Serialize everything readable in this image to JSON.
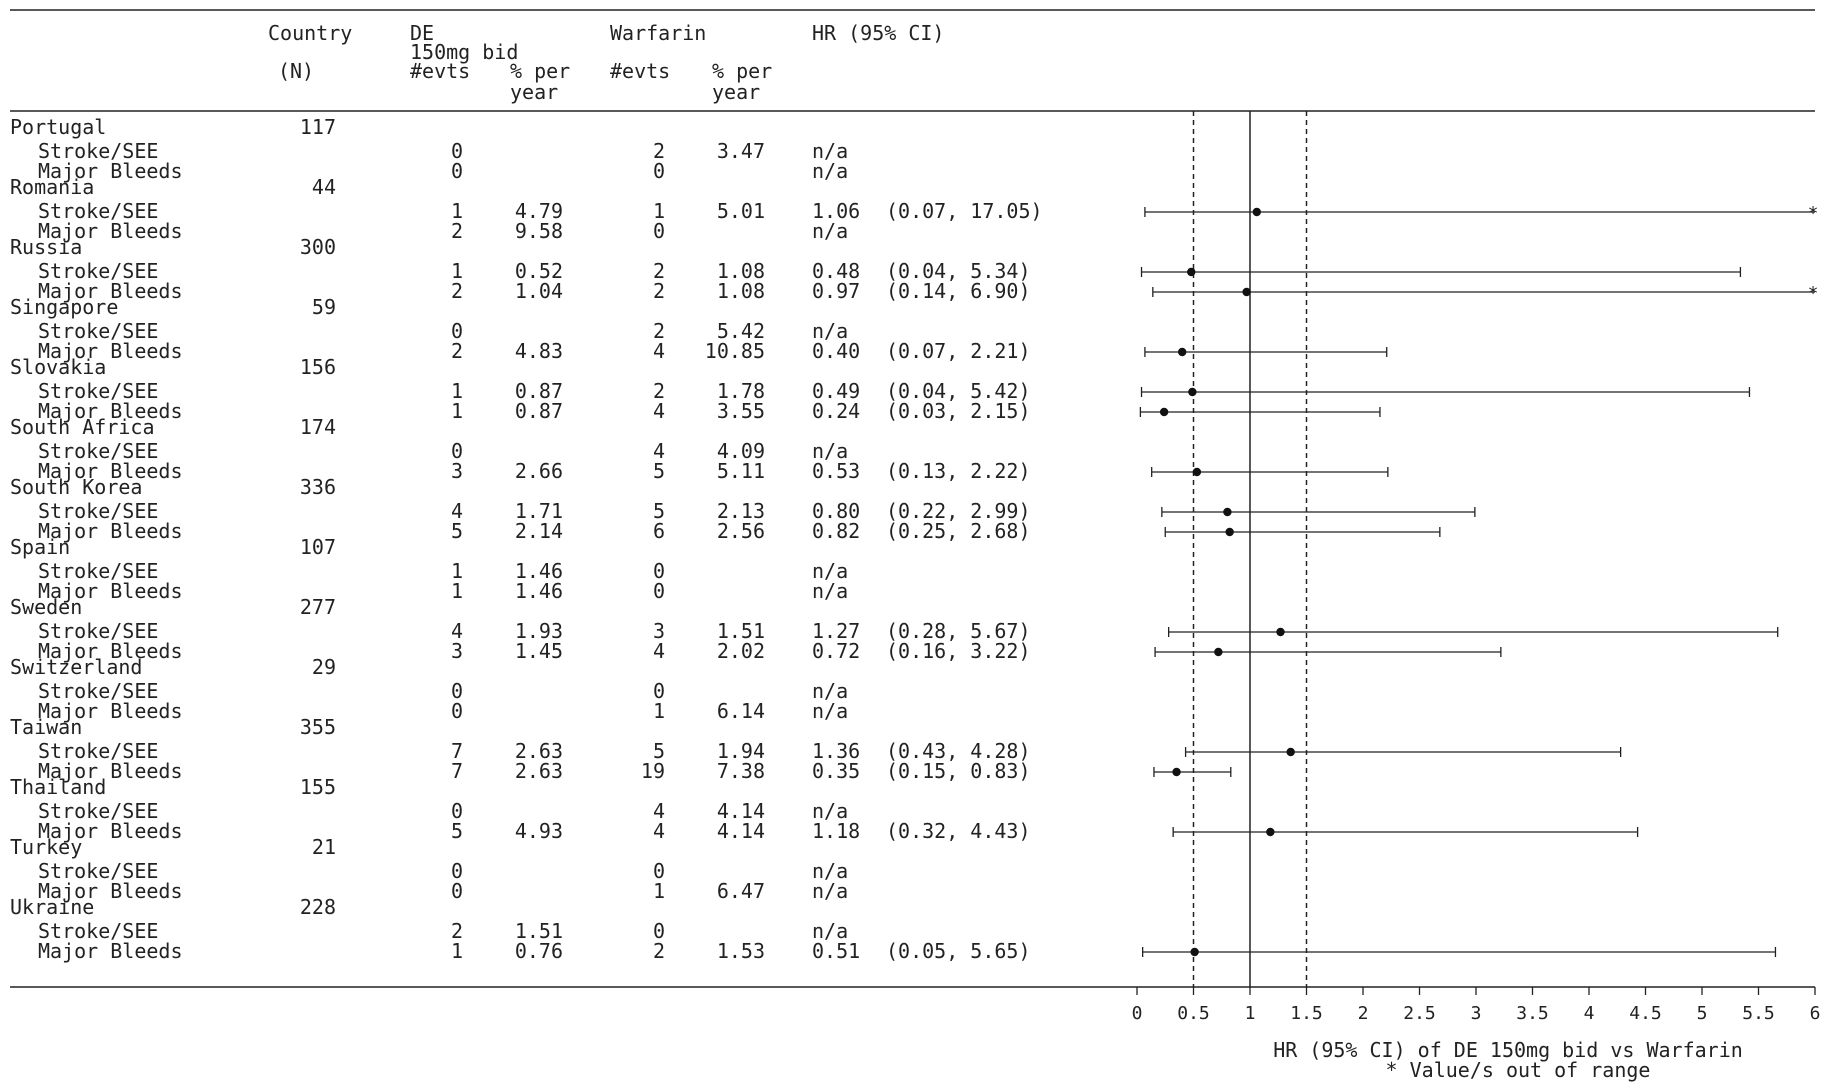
{
  "headers": {
    "country": "Country",
    "n": "(N)",
    "de_group": "DE",
    "de_group2": "150mg bid",
    "warfarin_group": "Warfarin",
    "hr": "HR (95% CI)",
    "evts": "#evts",
    "pct1": "% per",
    "pct2": "year"
  },
  "rows": [
    {
      "label": "Portugal",
      "n": "117",
      "heading": true
    },
    {
      "label": "Stroke/SEE",
      "de_evts": "0",
      "de_pct": "",
      "w_evts": "2",
      "w_pct": "3.47",
      "hr_text": "n/a",
      "ci_text": ""
    },
    {
      "label": "Major Bleeds",
      "de_evts": "0",
      "de_pct": "",
      "w_evts": "0",
      "w_pct": "",
      "hr_text": "n/a",
      "ci_text": ""
    },
    {
      "label": "Romania",
      "n": "44",
      "heading": true
    },
    {
      "label": "Stroke/SEE",
      "de_evts": "1",
      "de_pct": "4.79",
      "w_evts": "1",
      "w_pct": "5.01",
      "hr_text": "1.06",
      "ci_text": "(0.07, 17.05)"
    },
    {
      "label": "Major Bleeds",
      "de_evts": "2",
      "de_pct": "9.58",
      "w_evts": "0",
      "w_pct": "",
      "hr_text": "n/a",
      "ci_text": ""
    },
    {
      "label": "Russia",
      "n": "300",
      "heading": true
    },
    {
      "label": "Stroke/SEE",
      "de_evts": "1",
      "de_pct": "0.52",
      "w_evts": "2",
      "w_pct": "1.08",
      "hr_text": "0.48",
      "ci_text": "(0.04, 5.34)"
    },
    {
      "label": "Major Bleeds",
      "de_evts": "2",
      "de_pct": "1.04",
      "w_evts": "2",
      "w_pct": "1.08",
      "hr_text": "0.97",
      "ci_text": "(0.14, 6.90)"
    },
    {
      "label": "Singapore",
      "n": "59",
      "heading": true
    },
    {
      "label": "Stroke/SEE",
      "de_evts": "0",
      "de_pct": "",
      "w_evts": "2",
      "w_pct": "5.42",
      "hr_text": "n/a",
      "ci_text": ""
    },
    {
      "label": "Major Bleeds",
      "de_evts": "2",
      "de_pct": "4.83",
      "w_evts": "4",
      "w_pct": "10.85",
      "hr_text": "0.40",
      "ci_text": "(0.07, 2.21)"
    },
    {
      "label": "Slovakia",
      "n": "156",
      "heading": true
    },
    {
      "label": "Stroke/SEE",
      "de_evts": "1",
      "de_pct": "0.87",
      "w_evts": "2",
      "w_pct": "1.78",
      "hr_text": "0.49",
      "ci_text": "(0.04, 5.42)"
    },
    {
      "label": "Major Bleeds",
      "de_evts": "1",
      "de_pct": "0.87",
      "w_evts": "4",
      "w_pct": "3.55",
      "hr_text": "0.24",
      "ci_text": "(0.03, 2.15)"
    },
    {
      "label": "South Africa",
      "n": "174",
      "heading": true
    },
    {
      "label": "Stroke/SEE",
      "de_evts": "0",
      "de_pct": "",
      "w_evts": "4",
      "w_pct": "4.09",
      "hr_text": "n/a",
      "ci_text": ""
    },
    {
      "label": "Major Bleeds",
      "de_evts": "3",
      "de_pct": "2.66",
      "w_evts": "5",
      "w_pct": "5.11",
      "hr_text": "0.53",
      "ci_text": "(0.13, 2.22)"
    },
    {
      "label": "South Korea",
      "n": "336",
      "heading": true
    },
    {
      "label": "Stroke/SEE",
      "de_evts": "4",
      "de_pct": "1.71",
      "w_evts": "5",
      "w_pct": "2.13",
      "hr_text": "0.80",
      "ci_text": "(0.22, 2.99)"
    },
    {
      "label": "Major Bleeds",
      "de_evts": "5",
      "de_pct": "2.14",
      "w_evts": "6",
      "w_pct": "2.56",
      "hr_text": "0.82",
      "ci_text": "(0.25, 2.68)"
    },
    {
      "label": "Spain",
      "n": "107",
      "heading": true
    },
    {
      "label": "Stroke/SEE",
      "de_evts": "1",
      "de_pct": "1.46",
      "w_evts": "0",
      "w_pct": "",
      "hr_text": "n/a",
      "ci_text": ""
    },
    {
      "label": "Major Bleeds",
      "de_evts": "1",
      "de_pct": "1.46",
      "w_evts": "0",
      "w_pct": "",
      "hr_text": "n/a",
      "ci_text": ""
    },
    {
      "label": "Sweden",
      "n": "277",
      "heading": true
    },
    {
      "label": "Stroke/SEE",
      "de_evts": "4",
      "de_pct": "1.93",
      "w_evts": "3",
      "w_pct": "1.51",
      "hr_text": "1.27",
      "ci_text": "(0.28, 5.67)"
    },
    {
      "label": "Major Bleeds",
      "de_evts": "3",
      "de_pct": "1.45",
      "w_evts": "4",
      "w_pct": "2.02",
      "hr_text": "0.72",
      "ci_text": "(0.16, 3.22)"
    },
    {
      "label": "Switzerland",
      "n": "29",
      "heading": true
    },
    {
      "label": "Stroke/SEE",
      "de_evts": "0",
      "de_pct": "",
      "w_evts": "0",
      "w_pct": "",
      "hr_text": "n/a",
      "ci_text": ""
    },
    {
      "label": "Major Bleeds",
      "de_evts": "0",
      "de_pct": "",
      "w_evts": "1",
      "w_pct": "6.14",
      "hr_text": "n/a",
      "ci_text": ""
    },
    {
      "label": "Taiwan",
      "n": "355",
      "heading": true
    },
    {
      "label": "Stroke/SEE",
      "de_evts": "7",
      "de_pct": "2.63",
      "w_evts": "5",
      "w_pct": "1.94",
      "hr_text": "1.36",
      "ci_text": "(0.43, 4.28)"
    },
    {
      "label": "Major Bleeds",
      "de_evts": "7",
      "de_pct": "2.63",
      "w_evts": "19",
      "w_pct": "7.38",
      "hr_text": "0.35",
      "ci_text": "(0.15, 0.83)"
    },
    {
      "label": "Thailand",
      "n": "155",
      "heading": true
    },
    {
      "label": "Stroke/SEE",
      "de_evts": "0",
      "de_pct": "",
      "w_evts": "4",
      "w_pct": "4.14",
      "hr_text": "n/a",
      "ci_text": ""
    },
    {
      "label": "Major Bleeds",
      "de_evts": "5",
      "de_pct": "4.93",
      "w_evts": "4",
      "w_pct": "4.14",
      "hr_text": "1.18",
      "ci_text": "(0.32, 4.43)"
    },
    {
      "label": "Turkey",
      "n": "21",
      "heading": true
    },
    {
      "label": "Stroke/SEE",
      "de_evts": "0",
      "de_pct": "",
      "w_evts": "0",
      "w_pct": "",
      "hr_text": "n/a",
      "ci_text": ""
    },
    {
      "label": "Major Bleeds",
      "de_evts": "0",
      "de_pct": "",
      "w_evts": "1",
      "w_pct": "6.47",
      "hr_text": "n/a",
      "ci_text": ""
    },
    {
      "label": "Ukraine",
      "n": "228",
      "heading": true
    },
    {
      "label": "Stroke/SEE",
      "de_evts": "2",
      "de_pct": "1.51",
      "w_evts": "0",
      "w_pct": "",
      "hr_text": "n/a",
      "ci_text": ""
    },
    {
      "label": "Major Bleeds",
      "de_evts": "1",
      "de_pct": "0.76",
      "w_evts": "2",
      "w_pct": "1.53",
      "hr_text": "0.51",
      "ci_text": "(0.05, 5.65)"
    }
  ],
  "chart_data": {
    "type": "forest",
    "xlabel": "HR (95% CI) of DE 150mg bid vs Warfarin",
    "footnote": "* Value/s out of range",
    "xlim": [
      0,
      6
    ],
    "xticks": [
      "0",
      "0.5",
      "1",
      "1.5",
      "2",
      "2.5",
      "3",
      "3.5",
      "4",
      "4.5",
      "5",
      "5.5",
      "6"
    ],
    "reference_lines": [
      {
        "x": 1,
        "style": "solid"
      },
      {
        "x": 0.5,
        "style": "dashed"
      },
      {
        "x": 1.5,
        "style": "dashed"
      }
    ],
    "out_of_range_marker": "*",
    "points": [
      {
        "country": "Romania",
        "outcome": "Stroke/SEE",
        "hr": 1.06,
        "lo": 0.07,
        "hi": 17.05
      },
      {
        "country": "Russia",
        "outcome": "Stroke/SEE",
        "hr": 0.48,
        "lo": 0.04,
        "hi": 5.34
      },
      {
        "country": "Russia",
        "outcome": "Major Bleeds",
        "hr": 0.97,
        "lo": 0.14,
        "hi": 6.9
      },
      {
        "country": "Singapore",
        "outcome": "Major Bleeds",
        "hr": 0.4,
        "lo": 0.07,
        "hi": 2.21
      },
      {
        "country": "Slovakia",
        "outcome": "Stroke/SEE",
        "hr": 0.49,
        "lo": 0.04,
        "hi": 5.42
      },
      {
        "country": "Slovakia",
        "outcome": "Major Bleeds",
        "hr": 0.24,
        "lo": 0.03,
        "hi": 2.15
      },
      {
        "country": "South Africa",
        "outcome": "Major Bleeds",
        "hr": 0.53,
        "lo": 0.13,
        "hi": 2.22
      },
      {
        "country": "South Korea",
        "outcome": "Stroke/SEE",
        "hr": 0.8,
        "lo": 0.22,
        "hi": 2.99
      },
      {
        "country": "South Korea",
        "outcome": "Major Bleeds",
        "hr": 0.82,
        "lo": 0.25,
        "hi": 2.68
      },
      {
        "country": "Sweden",
        "outcome": "Stroke/SEE",
        "hr": 1.27,
        "lo": 0.28,
        "hi": 5.67
      },
      {
        "country": "Sweden",
        "outcome": "Major Bleeds",
        "hr": 0.72,
        "lo": 0.16,
        "hi": 3.22
      },
      {
        "country": "Taiwan",
        "outcome": "Stroke/SEE",
        "hr": 1.36,
        "lo": 0.43,
        "hi": 4.28
      },
      {
        "country": "Taiwan",
        "outcome": "Major Bleeds",
        "hr": 0.35,
        "lo": 0.15,
        "hi": 0.83
      },
      {
        "country": "Thailand",
        "outcome": "Major Bleeds",
        "hr": 1.18,
        "lo": 0.32,
        "hi": 4.43
      },
      {
        "country": "Ukraine",
        "outcome": "Major Bleeds",
        "hr": 0.51,
        "lo": 0.05,
        "hi": 5.65
      }
    ]
  }
}
